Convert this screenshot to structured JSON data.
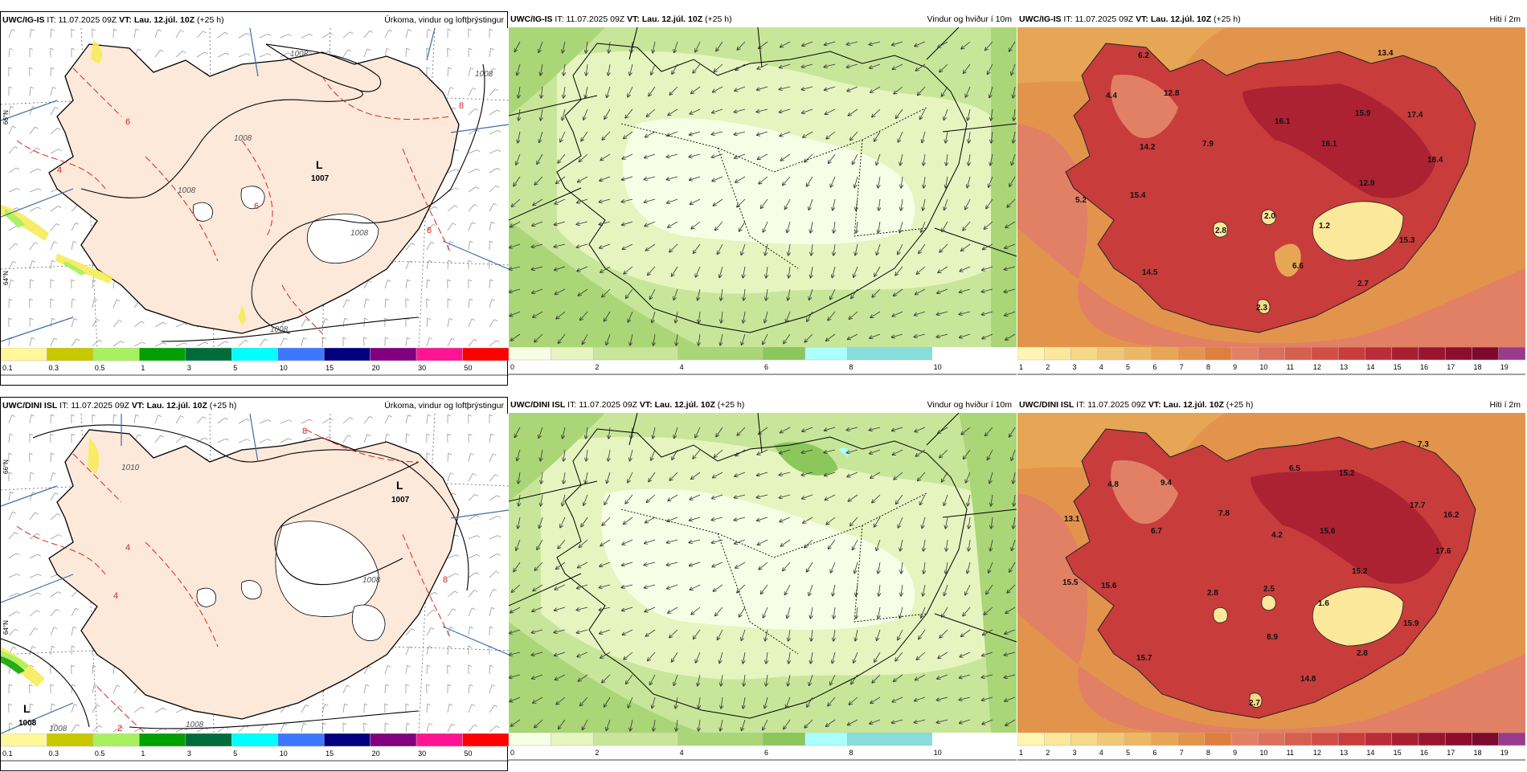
{
  "row_titles": [
    {
      "model": "UWC/IG-IS",
      "it_label": "IT:",
      "it": "11.07.2025 09Z",
      "vt_label": "VT:",
      "vt": "Lau. 12.júl. 10Z",
      "lead": "(+25 h)"
    },
    {
      "model": "UWC/DINI ISL",
      "it_label": "IT:",
      "it": "11.07.2025 09Z",
      "vt_label": "VT:",
      "vt": "Lau. 12.júl. 10Z",
      "lead": "(+25 h)"
    }
  ],
  "panel_titles": {
    "precip": "Úrkoma, vindur og loftþrýstingur",
    "wind": "Vindur og hviður í 10m",
    "temp": "Hiti í 2m"
  },
  "lat_labels": {
    "n66": "66°N",
    "n64": "64°N"
  },
  "legends": {
    "precip": {
      "colors": [
        "#fff79a",
        "#c8c800",
        "#a8f060",
        "#00a000",
        "#006c3c",
        "#00ffff",
        "#3c78ff",
        "#000080",
        "#800080",
        "#ff1493",
        "#ff0000"
      ],
      "ticks": [
        "0.1",
        "0.3",
        "0.5",
        "1",
        "3",
        "5",
        "10",
        "15",
        "20",
        "30",
        "50"
      ]
    },
    "wind": {
      "colors": [
        "#f6ffe6",
        "#e6f5c0",
        "#c8e69a",
        "#aad677",
        "#8cc75c",
        "#aaffff",
        "#88dddd"
      ],
      "boundaries": [
        0,
        1,
        2,
        4,
        6,
        7,
        8,
        10,
        12
      ],
      "ticks": [
        "0",
        "2",
        "4",
        "6",
        "8",
        "10"
      ]
    },
    "temp": {
      "colors": [
        "#fff6b4",
        "#fbe89a",
        "#f5d888",
        "#efc877",
        "#ebb865",
        "#e7a656",
        "#e3944c",
        "#df7f3d",
        "#e28066",
        "#dc705a",
        "#d65f4d",
        "#d04e44",
        "#c83c3c",
        "#b82d37",
        "#a81f32",
        "#9a142e",
        "#8c0d2c",
        "#7d0a2c",
        "#9a3a8c"
      ],
      "ticks": [
        "1",
        "2",
        "3",
        "4",
        "5",
        "6",
        "7",
        "8",
        "9",
        "10",
        "11",
        "12",
        "13",
        "14",
        "15",
        "16",
        "17",
        "18",
        "19"
      ]
    }
  },
  "maps": [
    {
      "precip": {
        "pressure_labels": [
          "1008",
          "1008",
          "1008",
          "1008",
          "1008",
          "1008"
        ],
        "low_letter": "L",
        "low_value": "1007",
        "red_labels": [
          "8",
          "6",
          "6",
          "4",
          "8"
        ]
      },
      "temp": {
        "values": [
          "6.2",
          "4.4",
          "12.8",
          "13.4",
          "15.9",
          "17.4",
          "16.1",
          "7.9",
          "16.1",
          "14.2",
          "18.4",
          "12.9",
          "15.4",
          "5.2",
          "2.8",
          "2.0",
          "1.2",
          "15.3",
          "6.6",
          "2.7",
          "14.5",
          "2.3"
        ]
      }
    },
    {
      "precip": {
        "pressure_labels": [
          "1010",
          "1008",
          "1008",
          "1008"
        ],
        "low_letter": "L",
        "low_value": "1007",
        "low2_letter": "L",
        "low2_value": "1008",
        "red_labels": [
          "8",
          "4",
          "2",
          "4",
          "8"
        ]
      },
      "temp": {
        "values": [
          "4.8",
          "9.4",
          "6.5",
          "7.3",
          "15.2",
          "13.1",
          "7.8",
          "17.7",
          "16.2",
          "6.7",
          "4.2",
          "15.6",
          "17.6",
          "15.2",
          "15.5",
          "15.6",
          "2.8",
          "2.5",
          "1.6",
          "15.9",
          "8.9",
          "2.8",
          "15.7",
          "14.8",
          "2.7"
        ]
      }
    }
  ]
}
